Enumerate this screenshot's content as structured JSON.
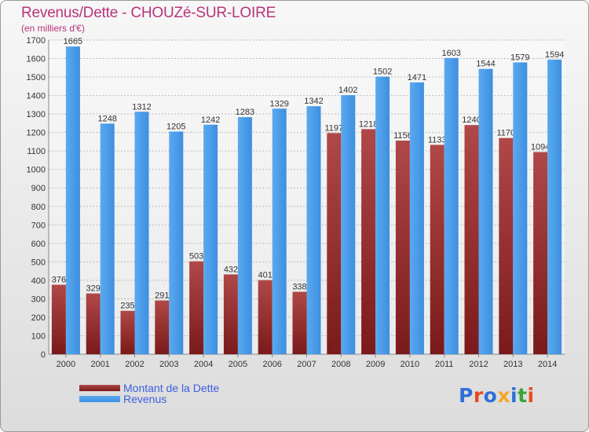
{
  "title": "Revenus/Dette - CHOUZé-SUR-LOIRE",
  "subtitle": "(en milliers d'€)",
  "legend": {
    "debt_label": "Montant de la Dette",
    "revenue_label": "Revenus"
  },
  "logo": {
    "letters": [
      "P",
      "r",
      "o",
      "x",
      "i",
      "t",
      "i"
    ],
    "colors": [
      "#2f6fd6",
      "#e8491d",
      "#2f6fd6",
      "#f5a623",
      "#2f6fd6",
      "#3aa63a",
      "#e8491d"
    ]
  },
  "colors": {
    "debt": "#7a1a1a",
    "debt_top": "#b04848",
    "revenue": "#3d8fe0",
    "revenue_light": "#5aa9f0",
    "title": "#b8347b",
    "grid": "#bdbdbd",
    "text": "#333333"
  },
  "chart_data": {
    "type": "bar",
    "title": "Revenus/Dette - CHOUZé-SUR-LOIRE",
    "ylabel": "(en milliers d'€)",
    "categories": [
      "2000",
      "2001",
      "2002",
      "2003",
      "2004",
      "2005",
      "2006",
      "2007",
      "2008",
      "2009",
      "2010",
      "2011",
      "2012",
      "2013",
      "2014"
    ],
    "series": [
      {
        "name": "Montant de la Dette",
        "values": [
          376,
          329,
          235,
          291,
          503,
          432,
          401,
          338,
          1197,
          1218,
          1156,
          1133,
          1240,
          1170,
          1094
        ]
      },
      {
        "name": "Revenus",
        "values": [
          1665,
          1248,
          1312,
          1205,
          1242,
          1283,
          1329,
          1342,
          1402,
          1502,
          1471,
          1603,
          1544,
          1579,
          1594
        ]
      }
    ],
    "ylim": [
      0,
      1700
    ],
    "ytick_step": 100,
    "grid": true,
    "legend_position": "bottom-left"
  }
}
